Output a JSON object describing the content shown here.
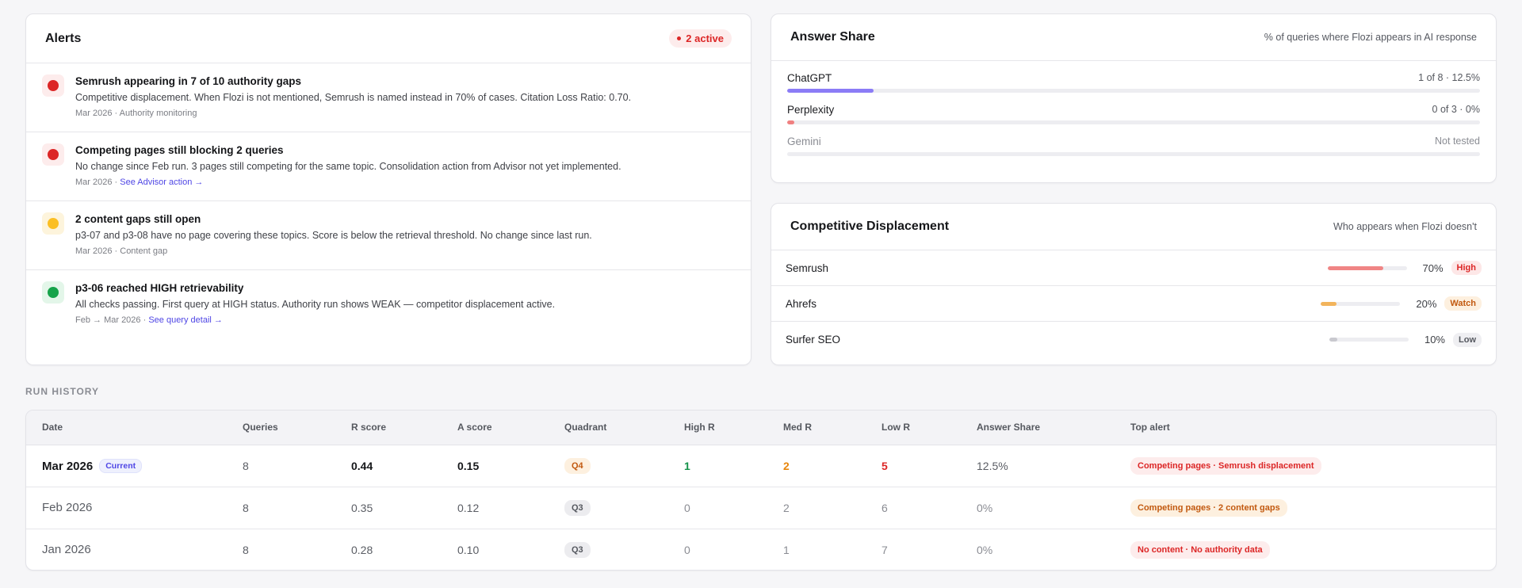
{
  "alerts": {
    "title": "Alerts",
    "active_label": "2 active",
    "items": [
      {
        "severity": "red",
        "title": "Semrush appearing in 7 of 10 authority gaps",
        "desc": "Competitive displacement. When Flozi is not mentioned, Semrush is named instead in 70% of cases. Citation Loss Ratio: 0.70.",
        "meta": "Mar 2026 · Authority monitoring",
        "link": ""
      },
      {
        "severity": "red",
        "title": "Competing pages still blocking 2 queries",
        "desc": "No change since Feb run. 3 pages still competing for the same topic. Consolidation action from Advisor not yet implemented.",
        "meta": "Mar 2026 · ",
        "link": "See Advisor action →"
      },
      {
        "severity": "yellow",
        "title": "2 content gaps still open",
        "desc": "p3-07 and p3-08 have no page covering these topics. Score is below the retrieval threshold. No change since last run.",
        "meta": "Mar 2026 · Content gap",
        "link": ""
      },
      {
        "severity": "green",
        "title": "p3-06 reached HIGH retrievability",
        "desc": "All checks passing. First query at HIGH status. Authority run shows WEAK — competitor displacement active.",
        "meta": "Feb → Mar 2026 · ",
        "link": "See query detail →"
      }
    ]
  },
  "answer_share": {
    "title": "Answer Share",
    "subtitle": "% of queries where Flozi appears in AI response",
    "rows": [
      {
        "name": "ChatGPT",
        "value": "1 of 8 · 12.5%",
        "share": 0.125,
        "color": "#8b7cf6"
      },
      {
        "name": "Perplexity",
        "value": "0 of 3 · 0%",
        "share": 0.0,
        "color": "#f08080"
      },
      {
        "name": "Gemini",
        "value": "Not tested",
        "share": 0.0,
        "color": "#cfcfd6"
      }
    ]
  },
  "competitive": {
    "title": "Competitive Displacement",
    "subtitle": "Who appears when Flozi doesn't",
    "rows": [
      {
        "name": "Semrush",
        "pct": "70%",
        "share": 0.7,
        "badge": "High",
        "bar": "#f08585",
        "badge_bg": "#fde7e7",
        "badge_fg": "#dc2626"
      },
      {
        "name": "Ahrefs",
        "pct": "20%",
        "share": 0.2,
        "badge": "Watch",
        "bar": "#f2b45c",
        "badge_bg": "#fdf0df",
        "badge_fg": "#c2590f"
      },
      {
        "name": "Surfer SEO",
        "pct": "10%",
        "share": 0.1,
        "badge": "Low",
        "bar": "#c9c9cf",
        "badge_bg": "#efeff2",
        "badge_fg": "#55585f"
      }
    ]
  },
  "run_history": {
    "label": "RUN HISTORY",
    "columns": [
      "Date",
      "Queries",
      "R score",
      "A score",
      "Quadrant",
      "High R",
      "Med R",
      "Low R",
      "Answer Share",
      "Top alert"
    ],
    "rows": [
      {
        "date": "Mar 2026",
        "current": "Current",
        "queries": "8",
        "r": "0.44",
        "a": "0.15",
        "quadrant": "Q4",
        "high": "1",
        "med": "2",
        "low": "5",
        "share": "12.5%",
        "alert": "Competing pages · Semrush displacement"
      },
      {
        "date": "Feb 2026",
        "current": "",
        "queries": "8",
        "r": "0.35",
        "a": "0.12",
        "quadrant": "Q3",
        "high": "0",
        "med": "2",
        "low": "6",
        "share": "0%",
        "alert": "Competing pages · 2 content gaps"
      },
      {
        "date": "Jan 2026",
        "current": "",
        "queries": "8",
        "r": "0.28",
        "a": "0.10",
        "quadrant": "Q3",
        "high": "0",
        "med": "1",
        "low": "7",
        "share": "0%",
        "alert": "No content · No authority data"
      }
    ]
  },
  "colors": {
    "red_ball": "#dc2626",
    "red_bg": "#fdecec",
    "yellow_ball": "#fbbf24",
    "yellow_bg": "#fdf4dc",
    "green_ball": "#16a34a",
    "green_bg": "#e3f6e9",
    "accent": "#4f46e5"
  }
}
